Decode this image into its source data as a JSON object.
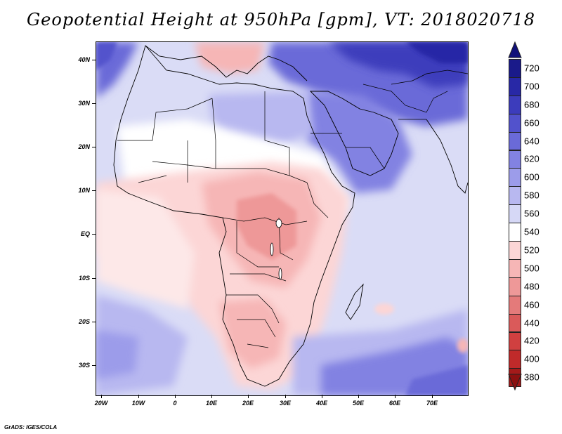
{
  "title": "Geopotential Height at 950hPa [gpm], VT: 2018020718",
  "footer": "GrADS: IGES/COLA",
  "map": {
    "variable": "Geopotential Height",
    "level": "950hPa",
    "units": "gpm",
    "valid_time": "2018020718",
    "lat_labels": [
      "40N",
      "30N",
      "20N",
      "10N",
      "EQ",
      "10S",
      "20S",
      "30S"
    ],
    "lon_labels": [
      "20W",
      "10W",
      "0",
      "10E",
      "20E",
      "30E",
      "40E",
      "50E",
      "60E",
      "70E"
    ]
  },
  "colorbar": {
    "levels": [
      {
        "value": "720",
        "color": "#1a1a8a"
      },
      {
        "value": "700",
        "color": "#2828a6"
      },
      {
        "value": "680",
        "color": "#3c3cbc"
      },
      {
        "value": "660",
        "color": "#5252cc"
      },
      {
        "value": "640",
        "color": "#6a6ad8"
      },
      {
        "value": "620",
        "color": "#8282e2"
      },
      {
        "value": "600",
        "color": "#9c9cea"
      },
      {
        "value": "580",
        "color": "#b8b8f0"
      },
      {
        "value": "560",
        "color": "#d6d8f6"
      },
      {
        "value": "540",
        "color": "#ffffff"
      },
      {
        "value": "520",
        "color": "#fcd6d6"
      },
      {
        "value": "500",
        "color": "#f6b6b6"
      },
      {
        "value": "480",
        "color": "#ee9898"
      },
      {
        "value": "460",
        "color": "#e47a7a"
      },
      {
        "value": "440",
        "color": "#da5a5a"
      },
      {
        "value": "420",
        "color": "#d04040"
      },
      {
        "value": "400",
        "color": "#c02a2a"
      },
      {
        "value": "380",
        "color": "#a41a1a"
      }
    ],
    "top_triangle_color": "#10107a",
    "bottom_triangle_color": "#8c1010"
  }
}
